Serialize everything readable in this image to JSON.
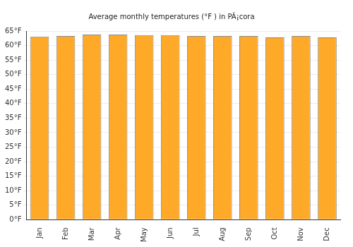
{
  "chart_data": {
    "type": "bar",
    "title": "Average monthly temperatures (°F ) in PÃ¡cora",
    "categories": [
      "Jan",
      "Feb",
      "Mar",
      "Apr",
      "May",
      "Jun",
      "Jul",
      "Aug",
      "Sep",
      "Oct",
      "Nov",
      "Dec"
    ],
    "values": [
      63.1,
      63.3,
      63.8,
      63.8,
      63.6,
      63.6,
      63.3,
      63.3,
      63.3,
      62.8,
      63.3,
      62.8
    ],
    "color": "#ffa929",
    "ylim": [
      0,
      65
    ],
    "yticks": [
      {
        "value": 0,
        "label": "0°F"
      },
      {
        "value": 5,
        "label": "5°F"
      },
      {
        "value": 10,
        "label": "10°F"
      },
      {
        "value": 15,
        "label": "15°F"
      },
      {
        "value": 20,
        "label": "20°F"
      },
      {
        "value": 25,
        "label": "25°F"
      },
      {
        "value": 30,
        "label": "30°F"
      },
      {
        "value": 35,
        "label": "35°F"
      },
      {
        "value": 40,
        "label": "40°F"
      },
      {
        "value": 45,
        "label": "45°F"
      },
      {
        "value": 50,
        "label": "50°F"
      },
      {
        "value": 55,
        "label": "55°F"
      },
      {
        "value": 60,
        "label": "60°F"
      },
      {
        "value": 65,
        "label": "65°F"
      }
    ],
    "grid": true
  }
}
